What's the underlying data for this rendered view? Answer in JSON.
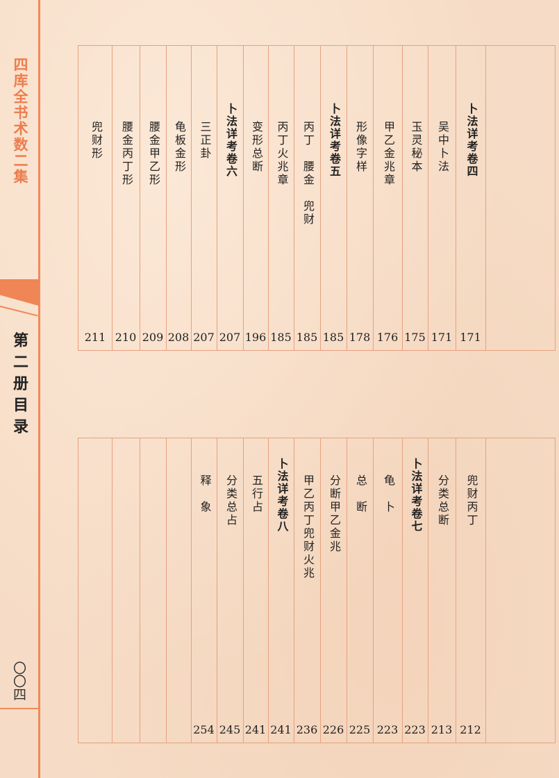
{
  "sidebar": {
    "series_title": "四库全书术数二集",
    "volume_title": "第二册目录",
    "page_number": "〇〇四"
  },
  "colors": {
    "accent": "#f08556",
    "rule": "#e7a07f",
    "paper": "#f6dcc6"
  },
  "top_entries": [
    {
      "title": "卜法详考卷四",
      "page": "171",
      "heading": true
    },
    {
      "title": "吴中卜法",
      "page": "171"
    },
    {
      "title": "玉灵秘本",
      "page": "175"
    },
    {
      "title": "甲乙金兆章",
      "page": "176"
    },
    {
      "title": "形像字样",
      "page": "178"
    },
    {
      "title": "卜法详考卷五",
      "page": "185",
      "heading": true
    },
    {
      "title": "丙丁　腰金　兜财",
      "page": "185"
    },
    {
      "title": "丙丁火兆章",
      "page": "185"
    },
    {
      "title": "变形总断",
      "page": "196"
    },
    {
      "title": "卜法详考卷六",
      "page": "207",
      "heading": true
    },
    {
      "title": "三正卦",
      "page": "207"
    },
    {
      "title": "龟板金形",
      "page": "208"
    },
    {
      "title": "腰金甲乙形",
      "page": "209"
    },
    {
      "title": "腰金丙丁形",
      "page": "210"
    },
    {
      "title": "兜财形",
      "page": "211"
    }
  ],
  "bottom_entries": [
    {
      "title": "兜财丙丁",
      "page": "212"
    },
    {
      "title": "分类总断",
      "page": "213"
    },
    {
      "title": "卜法详考卷七",
      "page": "223",
      "heading": true
    },
    {
      "title": "龟　卜",
      "page": "223"
    },
    {
      "title": "总　断",
      "page": "225"
    },
    {
      "title": "分断甲乙金兆",
      "page": "226"
    },
    {
      "title": "甲乙丙丁兜财火兆",
      "page": "236"
    },
    {
      "title": "卜法详考卷八",
      "page": "241",
      "heading": true
    },
    {
      "title": "五行占",
      "page": "241"
    },
    {
      "title": "分类总占",
      "page": "245"
    },
    {
      "title": "释　象",
      "page": "254"
    }
  ]
}
